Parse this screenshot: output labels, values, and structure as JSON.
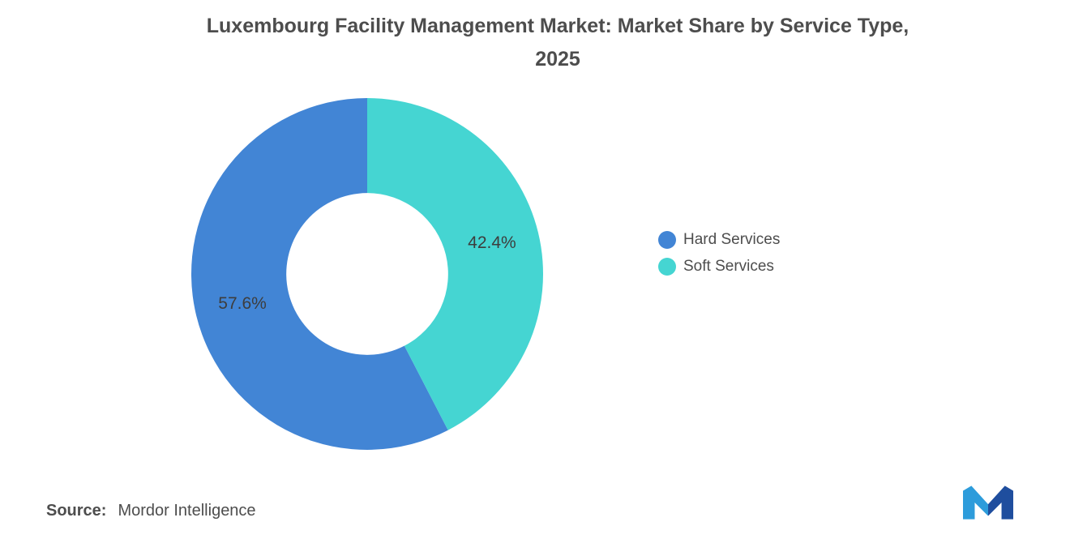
{
  "title": {
    "line1": "Luxembourg Facility Management Market: Market Share by Service Type,",
    "line2": "2025"
  },
  "chart_data": {
    "type": "pie",
    "subtype": "donut",
    "title": "Luxembourg Facility Management Market: Market Share by Service Type, 2025",
    "categories": [
      "Hard Services",
      "Soft Services"
    ],
    "values": [
      57.6,
      42.4
    ],
    "labels": [
      "57.6%",
      "42.4%"
    ],
    "colors": [
      "#4285D5",
      "#45D5D2"
    ],
    "start_angle_deg": -90,
    "direction": "counterclockwise",
    "inner_radius_ratio": 0.46,
    "legend_position": "right",
    "grid": false
  },
  "legend": {
    "items": [
      {
        "label": "Hard Services",
        "color": "#4285D5"
      },
      {
        "label": "Soft Services",
        "color": "#45D5D2"
      }
    ]
  },
  "source": {
    "prefix": "Source:",
    "text": "Mordor Intelligence"
  },
  "logo": {
    "name": "mordor-intelligence-logo",
    "colors": {
      "light": "#2D9CDB",
      "dark": "#1F4E9E"
    }
  }
}
